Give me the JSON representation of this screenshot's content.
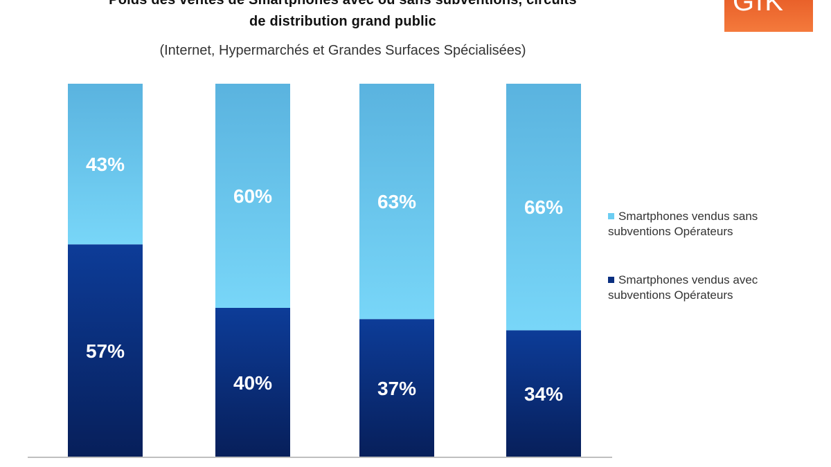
{
  "title_line1": "Poids des ventes de Smartphones avec ou sans subventions, circuits",
  "title_line2": "de distribution grand public",
  "subtitle": "(Internet, Hypermarchés et Grandes Surfaces Spécialisées)",
  "logo_text": "GfK",
  "colors": {
    "sans_subventions": "#6ccdf2",
    "avec_subventions": "#0a2f80",
    "axis": "#bfbfbf"
  },
  "legend": [
    {
      "line1": "Smartphones vendus sans",
      "line2": "subventions Opérateurs"
    },
    {
      "line1": "Smartphones vendus avec",
      "line2": "subventions Opérateurs"
    }
  ],
  "chart_data": {
    "type": "bar",
    "stacked": true,
    "categories": [
      "",
      "",
      "",
      ""
    ],
    "series": [
      {
        "name": "Smartphones vendus avec subventions Opérateurs",
        "values": [
          57,
          40,
          37,
          34
        ],
        "labels": [
          "57%",
          "40%",
          "37%",
          "34%"
        ]
      },
      {
        "name": "Smartphones vendus sans subventions Opérateurs",
        "values": [
          43,
          60,
          63,
          66
        ],
        "labels": [
          "43%",
          "60%",
          "63%",
          "66%"
        ]
      }
    ],
    "ylim": [
      0,
      100
    ],
    "legend_position": "right",
    "grid": false
  }
}
